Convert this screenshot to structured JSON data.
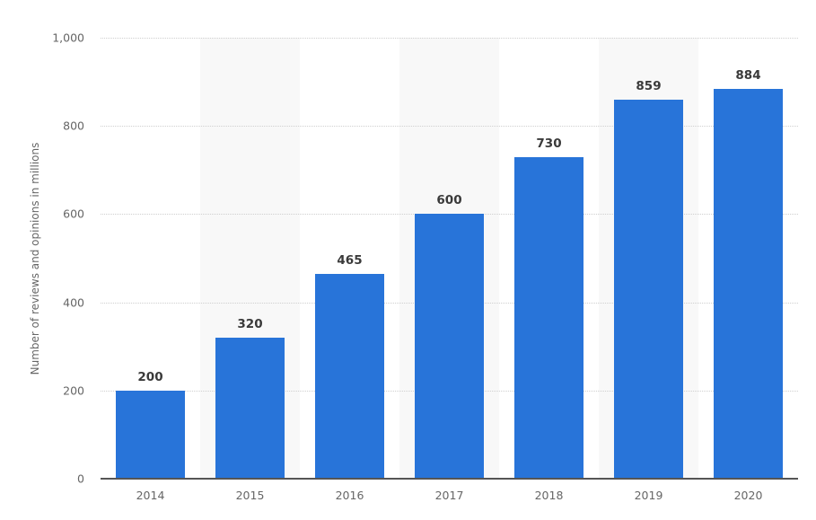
{
  "chart_data": {
    "type": "bar",
    "title": "",
    "xlabel": "",
    "ylabel": "Number of reviews and opinions in millions",
    "categories": [
      "2014",
      "2015",
      "2016",
      "2017",
      "2018",
      "2019",
      "2020"
    ],
    "values": [
      200,
      320,
      465,
      600,
      730,
      859,
      884
    ],
    "data_labels": [
      "200",
      "320",
      "465",
      "600",
      "730",
      "859",
      "884"
    ],
    "ylim": [
      0,
      1000
    ],
    "yticks": [
      0,
      200,
      400,
      600,
      800,
      1000
    ],
    "ytick_labels": [
      "0",
      "200",
      "400",
      "600",
      "800",
      "1,000"
    ],
    "grid": true,
    "legend": null,
    "bar_color": "#2874d9"
  }
}
